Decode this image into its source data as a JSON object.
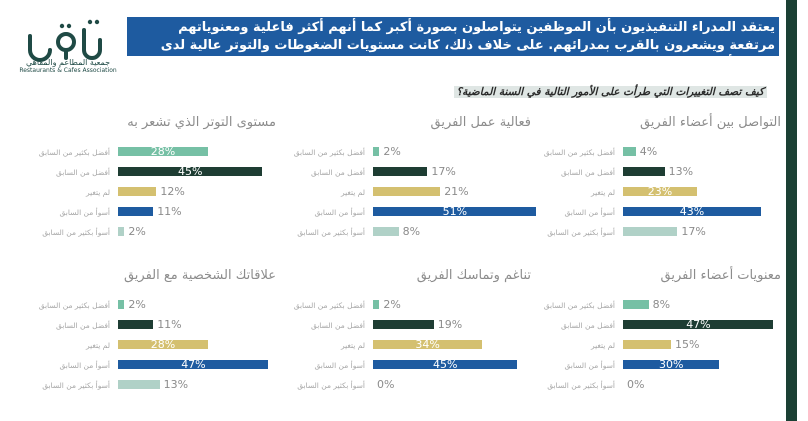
{
  "logo": {
    "caption_ar": "جمعية المطاعم والمقاهي",
    "caption_en": "Restaurants & Cafes Association"
  },
  "banner": {
    "text": "يعتقد المدراء التنفيذيون بأن الموظفين يتواصلون بصورة أكبر كما أنهم أكثر فاعلية ومعنوياتهم مرتفعة ويشعرون بالقرب بمدرائهم. على خلاف ذلك، كانت مستويات الضغوطات والتوتر عالية لدى القادة أنفسهم."
  },
  "question": "كيف تصف التغييرات التي طرأت على الأمور التالية في السنة الماضية؟",
  "colors": [
    "#76c0a5",
    "#1e3d33",
    "#d4c070",
    "#1e5ba0",
    "#b0d1c7"
  ],
  "chart_data": [
    {
      "type": "bar",
      "title": "التواصل بين أعضاء الفريق",
      "categories": [
        "أفضل بكثير من السابق",
        "أفضل من السابق",
        "لم يتغير",
        "أسوأ من السابق",
        "أسوأ بكثير من السابق"
      ],
      "values": [
        4,
        13,
        23,
        43,
        17
      ],
      "value_labels": [
        "4%",
        "13%",
        "23%",
        "43%",
        "17%"
      ]
    },
    {
      "type": "bar",
      "title": "فعالية عمل الفريق",
      "categories": [
        "أفضل بكثير من السابق",
        "أفضل من السابق",
        "لم يتغير",
        "أسوأ من السابق",
        "أسوأ بكثير من السابق"
      ],
      "values": [
        2,
        17,
        21,
        51,
        8
      ],
      "value_labels": [
        "2%",
        "17%",
        "21%",
        "51%",
        "8%"
      ]
    },
    {
      "type": "bar",
      "title": "مستوى التوتر الذي تشعر به",
      "categories": [
        "أفضل بكثير من السابق",
        "أفضل من السابق",
        "لم يتغير",
        "أسوأ من السابق",
        "أسوأ بكثير من السابق"
      ],
      "values": [
        28,
        45,
        12,
        11,
        2
      ],
      "value_labels": [
        "28%",
        "45%",
        "12%",
        "11%",
        "2%"
      ]
    },
    {
      "type": "bar",
      "title": "معنويات أعضاء الفريق",
      "categories": [
        "أفضل بكثير من السابق",
        "أفضل من السابق",
        "لم يتغير",
        "أسوأ من السابق",
        "أسوأ بكثير من السابق"
      ],
      "values": [
        8,
        47,
        15,
        30,
        0
      ],
      "value_labels": [
        "8%",
        "47%",
        "15%",
        "30%",
        "0%"
      ]
    },
    {
      "type": "bar",
      "title": "تناغم وتماسك الفريق",
      "categories": [
        "أفضل بكثير من السابق",
        "أفضل من السابق",
        "لم يتغير",
        "أسوأ من السابق",
        "أسوأ بكثير من السابق"
      ],
      "values": [
        2,
        19,
        34,
        45,
        0
      ],
      "value_labels": [
        "2%",
        "19%",
        "34%",
        "45%",
        "0%"
      ]
    },
    {
      "type": "bar",
      "title": "علاقاتك الشخصية مع الفريق",
      "categories": [
        "أفضل بكثير من السابق",
        "أفضل من السابق",
        "لم يتغير",
        "أسوأ من السابق",
        "أسوأ بكثير من السابق"
      ],
      "values": [
        2,
        11,
        28,
        47,
        13
      ],
      "value_labels": [
        "2%",
        "11%",
        "28%",
        "47%",
        "13%"
      ]
    }
  ]
}
